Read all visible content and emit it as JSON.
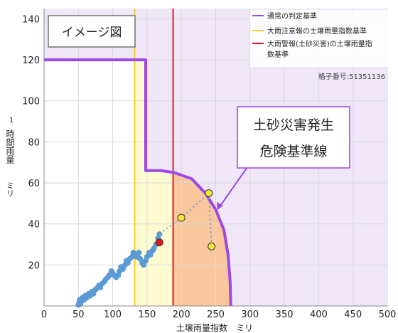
{
  "chart_data": {
    "type": "scatter",
    "xlabel": "土壌雨量指数　ミリ",
    "ylabel_main": "時間雨量",
    "ylabel_prefix": "1",
    "ylabel_unit": "ミリ",
    "xlim": [
      0,
      500
    ],
    "ylim": [
      0,
      145
    ],
    "x_ticks": [
      0,
      50,
      100,
      150,
      200,
      250,
      300,
      350,
      400,
      450,
      500
    ],
    "y_ticks": [
      20,
      40,
      60,
      80,
      100,
      120,
      140
    ],
    "grid": true,
    "legend_position": "top-right",
    "legend": [
      {
        "label": "通常の判定基準",
        "color": "#9b48e6"
      },
      {
        "label": "大雨注意報の土壌雨量指数基準",
        "color": "#f5d020"
      },
      {
        "label": "大雨警報(土砂災害)の土壌雨量指数基準",
        "color": "#e8141b"
      }
    ],
    "grid_number": "格子番号:51351136",
    "image_label": "イメージ図",
    "callout": [
      "土砂災害発生",
      "危険基準線"
    ],
    "advisory_threshold": 132,
    "warning_threshold": 188,
    "boundary_line": [
      [
        0,
        120
      ],
      [
        148,
        120
      ],
      [
        148,
        66
      ],
      [
        170,
        66
      ],
      [
        190,
        65
      ],
      [
        215,
        62
      ],
      [
        235,
        55
      ],
      [
        250,
        47
      ],
      [
        262,
        37
      ],
      [
        268,
        25
      ],
      [
        271,
        12
      ],
      [
        272,
        0
      ]
    ],
    "observed_points": [
      [
        50,
        0.5
      ],
      [
        51,
        1.5
      ],
      [
        52,
        3
      ],
      [
        53,
        1
      ],
      [
        55,
        2.5
      ],
      [
        56,
        4
      ],
      [
        58,
        3
      ],
      [
        60,
        5
      ],
      [
        62,
        4
      ],
      [
        65,
        6
      ],
      [
        67,
        5
      ],
      [
        70,
        7
      ],
      [
        72,
        6
      ],
      [
        75,
        8
      ],
      [
        78,
        9
      ],
      [
        80,
        10
      ],
      [
        82,
        9
      ],
      [
        85,
        11
      ],
      [
        88,
        12
      ],
      [
        90,
        13
      ],
      [
        93,
        14
      ],
      [
        95,
        15
      ],
      [
        98,
        17
      ],
      [
        100,
        16
      ],
      [
        102,
        15
      ],
      [
        105,
        14
      ],
      [
        108,
        15
      ],
      [
        110,
        17
      ],
      [
        112,
        19
      ],
      [
        115,
        18
      ],
      [
        118,
        20
      ],
      [
        120,
        22
      ],
      [
        122,
        21
      ],
      [
        125,
        23
      ],
      [
        128,
        24
      ],
      [
        130,
        26
      ],
      [
        133,
        25
      ],
      [
        135,
        24
      ],
      [
        138,
        26
      ],
      [
        140,
        23
      ],
      [
        143,
        21
      ],
      [
        145,
        20
      ],
      [
        148,
        22
      ],
      [
        150,
        24
      ],
      [
        153,
        26
      ],
      [
        155,
        25
      ],
      [
        158,
        27
      ],
      [
        160,
        28
      ],
      [
        163,
        30
      ],
      [
        166,
        33
      ],
      [
        168,
        35
      ]
    ],
    "forecast_points": [
      [
        168,
        31
      ],
      [
        200,
        43
      ],
      [
        240,
        55
      ],
      [
        244,
        29
      ]
    ],
    "forecast_colors": [
      "#e8141b",
      "#f5e432",
      "#f5e432",
      "#f5e432"
    ],
    "colors": {
      "region_bg": "#efe6f7",
      "caution_fill": "#fffbd0",
      "danger_fill": "#f9c79d",
      "series": "#5b9bd5",
      "boundary": "#9b48e6",
      "advisory": "#f5d020",
      "warning": "#e8141b",
      "grid": "#d9d9d9"
    }
  }
}
